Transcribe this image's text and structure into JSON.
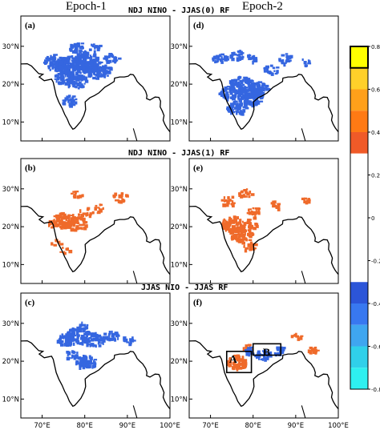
{
  "headers": {
    "epoch1": "Epoch-1",
    "epoch2": "Epoch-2"
  },
  "row_titles": [
    "NDJ NINO - JJAS(0) RF",
    "NDJ NINO - JJAS(1) RF",
    "JJAS NIO - JJAS RF"
  ],
  "panels": [
    {
      "label": "(a)",
      "row": 0,
      "col": 0
    },
    {
      "label": "(d)",
      "row": 0,
      "col": 1
    },
    {
      "label": "(b)",
      "row": 1,
      "col": 0
    },
    {
      "label": "(e)",
      "row": 1,
      "col": 1
    },
    {
      "label": "(c)",
      "row": 2,
      "col": 0
    },
    {
      "label": "(f)",
      "row": 2,
      "col": 1
    }
  ],
  "lat_ticks": [
    "30°N",
    "20°N",
    "10°N"
  ],
  "lon_ticks": [
    "70°E",
    "80°E",
    "90°E",
    "100°E"
  ],
  "boxes": [
    {
      "label": "A",
      "panel": "(f)"
    },
    {
      "label": "B",
      "panel": "(f)"
    }
  ],
  "colorbar": {
    "ticks": [
      "0.8",
      "0.6",
      "0.4",
      "0.2",
      "0",
      "-0.2",
      "-0.4",
      "-0.6",
      "-0.8"
    ],
    "bins": [
      {
        "range": [
          0.7,
          0.8
        ],
        "color": "#ffff00"
      },
      {
        "range": [
          0.6,
          0.7
        ],
        "color": "#ffd02a"
      },
      {
        "range": [
          0.5,
          0.6
        ],
        "color": "#ffa01a"
      },
      {
        "range": [
          0.4,
          0.5
        ],
        "color": "#ff7a14"
      },
      {
        "range": [
          0.3,
          0.4
        ],
        "color": "#f05a28"
      },
      {
        "range": [
          -0.3,
          0.3
        ],
        "color": "#ffffff"
      },
      {
        "range": [
          -0.4,
          -0.3
        ],
        "color": "#2c55d8"
      },
      {
        "range": [
          -0.5,
          -0.4
        ],
        "color": "#3878f0"
      },
      {
        "range": [
          -0.6,
          -0.5
        ],
        "color": "#3fa6f0"
      },
      {
        "range": [
          -0.7,
          -0.6
        ],
        "color": "#30d0ea"
      },
      {
        "range": [
          -0.8,
          -0.7
        ],
        "color": "#2ef0f0"
      }
    ]
  },
  "colors": {
    "negative": "#3566e0",
    "positive": "#ef6a2a",
    "coast": "#000000"
  }
}
